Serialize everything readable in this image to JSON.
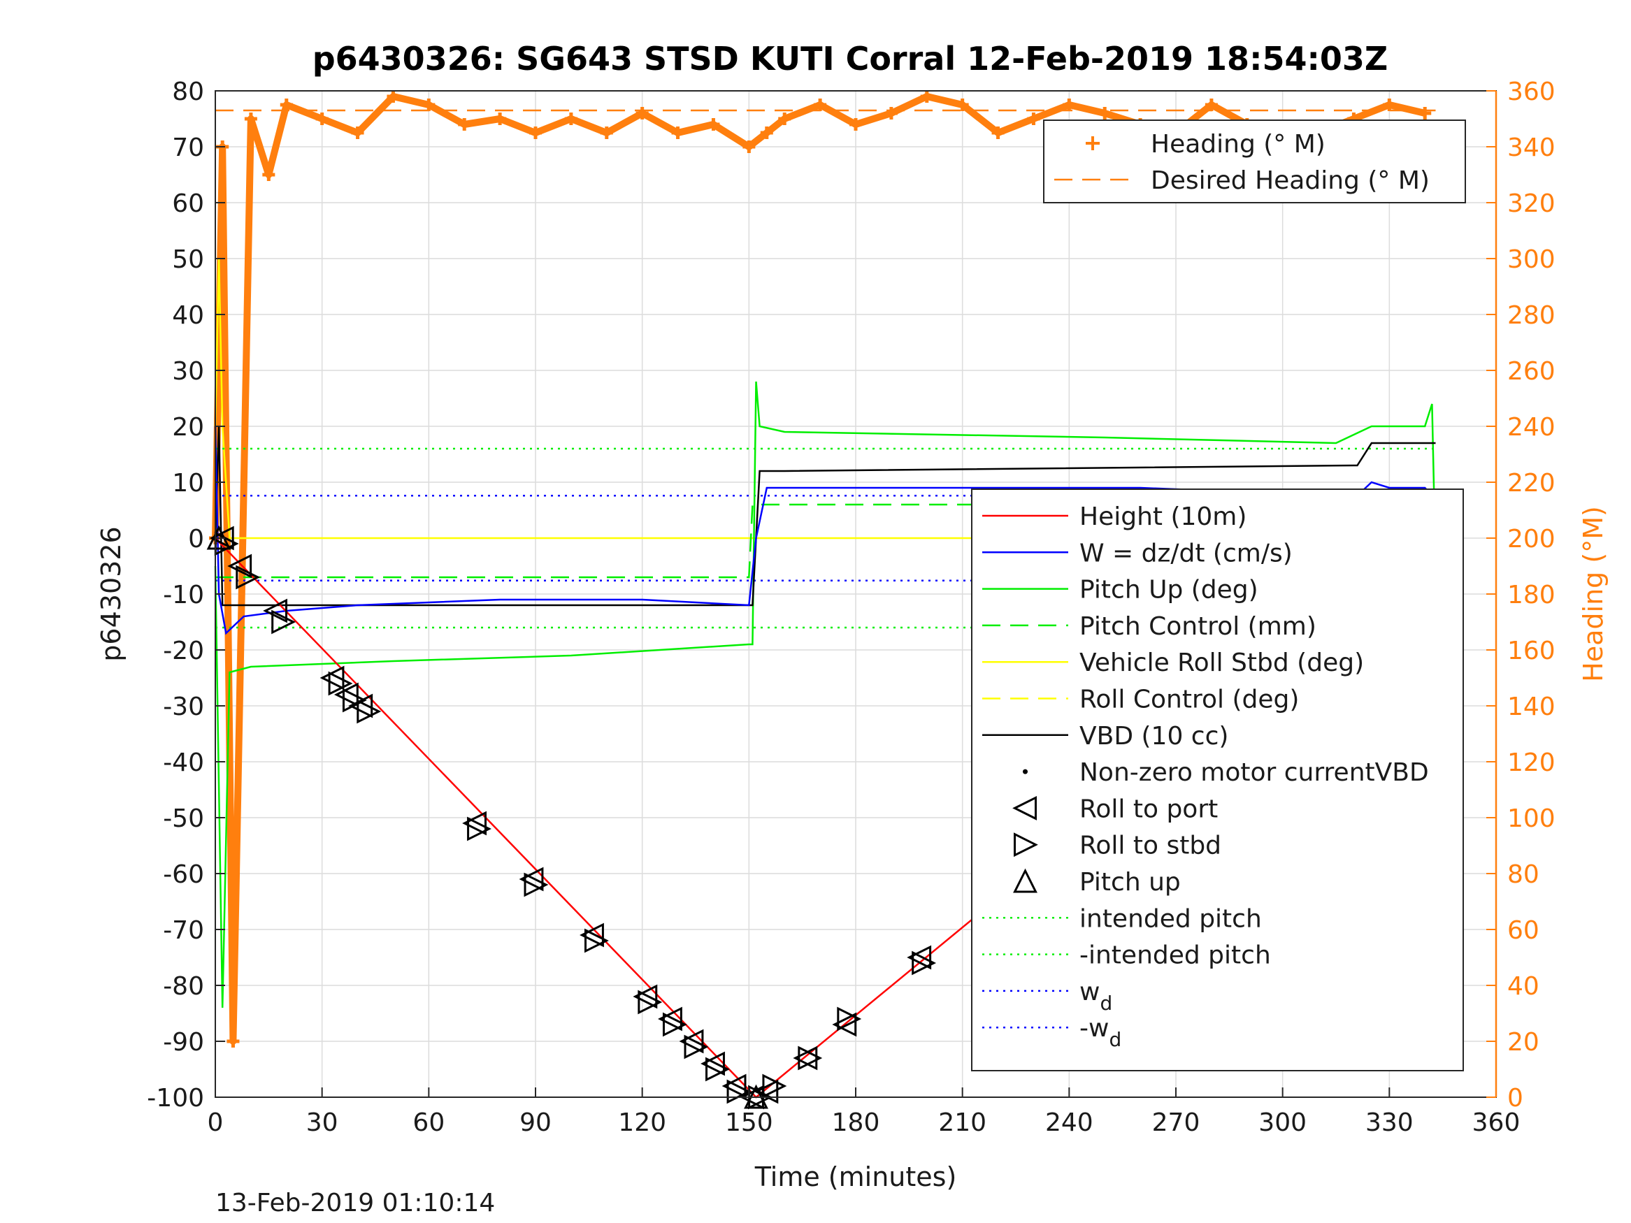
{
  "chart_data": {
    "type": "line",
    "title": "p6430326: SG643 STSD KUTI Corral 12-Feb-2019 18:54:03Z",
    "xlabel": "Time (minutes)",
    "ylabel": "p6430326",
    "y2label": "Heading (°M)",
    "timestamp": "13-Feb-2019 01:10:14",
    "xlim": [
      0,
      360
    ],
    "ylim": [
      -100,
      80
    ],
    "y2lim": [
      0,
      360
    ],
    "xticks": [
      "0",
      "30",
      "60",
      "90",
      "120",
      "150",
      "180",
      "210",
      "240",
      "270",
      "300",
      "330",
      "360"
    ],
    "yticks": [
      "-100",
      "-90",
      "-80",
      "-70",
      "-60",
      "-50",
      "-40",
      "-30",
      "-20",
      "-10",
      "0",
      "10",
      "20",
      "30",
      "40",
      "50",
      "60",
      "70",
      "80"
    ],
    "y2ticks": [
      "0",
      "20",
      "40",
      "60",
      "80",
      "100",
      "120",
      "140",
      "160",
      "180",
      "200",
      "220",
      "240",
      "260",
      "280",
      "300",
      "320",
      "340",
      "360"
    ],
    "grid": true,
    "colors": {
      "height": "#ff0000",
      "w": "#0000ff",
      "pitch": "#00ee00",
      "roll": "#ffff00",
      "vbd": "#000000",
      "heading": "#ff7f0e"
    },
    "legend_top": [
      {
        "label": "Heading (° M)",
        "style": "plus",
        "color": "#ff7f0e"
      },
      {
        "label": "Desired Heading (° M)",
        "style": "dashed",
        "color": "#ff7f0e"
      }
    ],
    "legend_main": [
      {
        "label": "Height (10m)",
        "style": "solid",
        "color": "#ff0000"
      },
      {
        "label": "W = dz/dt (cm/s)",
        "style": "solid",
        "color": "#0000ff"
      },
      {
        "label": "Pitch Up (deg)",
        "style": "solid",
        "color": "#00ee00"
      },
      {
        "label": "Pitch Control (mm)",
        "style": "dashed",
        "color": "#00ee00"
      },
      {
        "label": "Vehicle Roll Stbd (deg)",
        "style": "solid",
        "color": "#ffff00"
      },
      {
        "label": "Roll Control (deg)",
        "style": "dashed",
        "color": "#ffff00"
      },
      {
        "label": "VBD (10 cc)",
        "style": "solid",
        "color": "#000000"
      },
      {
        "label": "Non-zero motor currentVBD",
        "style": "dot",
        "color": "#000000"
      },
      {
        "label": "Roll to port",
        "style": "tri-left",
        "color": "#000000"
      },
      {
        "label": "Roll to stbd",
        "style": "tri-right",
        "color": "#000000"
      },
      {
        "label": "Pitch up",
        "style": "tri-up",
        "color": "#000000"
      },
      {
        "label": "intended pitch",
        "style": "dotted",
        "color": "#00ee00"
      },
      {
        "label": "-intended pitch",
        "style": "dotted",
        "color": "#00ee00"
      },
      {
        "label": "w",
        "sub": "d",
        "style": "dotted",
        "color": "#0000ff"
      },
      {
        "label": "-w",
        "sub": "d",
        "style": "dotted",
        "color": "#0000ff"
      }
    ],
    "series": [
      {
        "name": "Height (10m)",
        "x": [
          0,
          152,
          343
        ],
        "y": [
          0,
          -100,
          0
        ]
      },
      {
        "name": "W = dz/dt (cm/s)",
        "x": [
          0,
          1,
          3,
          8,
          20,
          40,
          80,
          120,
          150,
          152,
          155,
          165,
          200,
          260,
          300,
          320,
          325,
          330,
          340,
          343
        ],
        "y": [
          20,
          -10,
          -17,
          -14,
          -13,
          -12,
          -11,
          -11,
          -12,
          0,
          9,
          9,
          9,
          9,
          8,
          7,
          10,
          9,
          9,
          7
        ]
      },
      {
        "name": "Pitch Up (deg)",
        "x": [
          0,
          2,
          4,
          10,
          50,
          100,
          150,
          151,
          152,
          153,
          160,
          250,
          315,
          325,
          340,
          342,
          343
        ],
        "y": [
          -5,
          -84,
          -24,
          -23,
          -22,
          -21,
          -19,
          -19,
          28,
          20,
          19,
          18,
          17,
          20,
          20,
          24,
          -5
        ]
      },
      {
        "name": "Vehicle Roll Stbd (deg)",
        "x": [
          0,
          1,
          2,
          4,
          6,
          10,
          50,
          100,
          151,
          153,
          200,
          300,
          340,
          343
        ],
        "y": [
          20,
          50,
          20,
          0,
          0,
          0,
          0,
          0,
          0,
          0,
          0,
          0,
          0,
          0
        ]
      },
      {
        "name": "VBD (10 cc)",
        "x": [
          0,
          1,
          2,
          150,
          151,
          153,
          160,
          320,
          321,
          325,
          343
        ],
        "y": [
          0,
          20,
          -12,
          -12,
          -12,
          12,
          12,
          13,
          13,
          17,
          17
        ]
      },
      {
        "name": "Pitch Control (mm)",
        "x": [
          0,
          150,
          151,
          343
        ],
        "y": [
          -7,
          -7,
          6,
          6
        ]
      },
      {
        "name": "intended pitch",
        "x": [
          0,
          343
        ],
        "y": [
          16,
          16
        ]
      },
      {
        "name": "-intended pitch",
        "x": [
          0,
          343
        ],
        "y": [
          -16,
          -16
        ]
      },
      {
        "name": "w_d",
        "x": [
          0,
          343
        ],
        "y": [
          7.6,
          7.6
        ]
      },
      {
        "name": "-w_d",
        "x": [
          0,
          343
        ],
        "y": [
          -7.6,
          -7.6
        ]
      },
      {
        "name": "Heading (° M)",
        "axis": "right",
        "x": [
          0,
          2,
          5,
          10,
          15,
          20,
          30,
          40,
          50,
          60,
          70,
          80,
          90,
          100,
          110,
          120,
          130,
          140,
          150,
          155,
          160,
          170,
          180,
          190,
          200,
          210,
          220,
          230,
          240,
          250,
          260,
          270,
          280,
          290,
          300,
          310,
          320,
          330,
          340
        ],
        "y": [
          200,
          340,
          20,
          350,
          330,
          355,
          350,
          345,
          358,
          355,
          348,
          350,
          345,
          350,
          345,
          352,
          345,
          348,
          340,
          345,
          350,
          355,
          348,
          352,
          358,
          355,
          345,
          350,
          355,
          352,
          348,
          345,
          355,
          348,
          340,
          345,
          350,
          355,
          352
        ]
      },
      {
        "name": "Desired Heading (° M)",
        "axis": "right",
        "x": [
          0,
          343
        ],
        "y": [
          353,
          353
        ]
      }
    ],
    "markers": {
      "roll_port": [
        [
          2,
          0
        ],
        [
          7,
          -5
        ],
        [
          17,
          -13
        ],
        [
          33,
          -25
        ],
        [
          37,
          -28
        ],
        [
          41,
          -30
        ],
        [
          73,
          -51
        ],
        [
          89,
          -61
        ],
        [
          106,
          -71
        ],
        [
          121,
          -82
        ],
        [
          128,
          -86
        ],
        [
          134,
          -90
        ],
        [
          140,
          -94
        ],
        [
          146,
          -98
        ],
        [
          151,
          -100
        ],
        [
          155,
          -99
        ],
        [
          166,
          -93
        ],
        [
          177,
          -87
        ],
        [
          198,
          -75
        ],
        [
          219,
          -64
        ],
        [
          286,
          -28
        ],
        [
          290,
          -26
        ],
        [
          303,
          -20
        ],
        [
          310,
          -16
        ],
        [
          316,
          -13
        ],
        [
          321,
          -11
        ],
        [
          334,
          -4
        ],
        [
          341,
          0
        ]
      ],
      "roll_stbd": [
        [
          3,
          -1
        ],
        [
          9,
          -7
        ],
        [
          19,
          -15
        ],
        [
          35,
          -26
        ],
        [
          39,
          -29
        ],
        [
          43,
          -31
        ],
        [
          74,
          -52
        ],
        [
          90,
          -62
        ],
        [
          107,
          -72
        ],
        [
          122,
          -83
        ],
        [
          129,
          -87
        ],
        [
          135,
          -91
        ],
        [
          141,
          -95
        ],
        [
          147,
          -99
        ],
        [
          153,
          -100
        ],
        [
          157,
          -98
        ],
        [
          167,
          -93
        ],
        [
          178,
          -86
        ],
        [
          199,
          -76
        ],
        [
          220,
          -64
        ],
        [
          288,
          -27
        ],
        [
          292,
          -25
        ],
        [
          304,
          -19
        ],
        [
          312,
          -15
        ],
        [
          318,
          -12
        ],
        [
          323,
          -10
        ],
        [
          335,
          -4
        ],
        [
          343,
          0
        ]
      ],
      "pitch_up": [
        [
          1,
          0
        ],
        [
          152,
          -100
        ],
        [
          342,
          0
        ]
      ]
    }
  }
}
